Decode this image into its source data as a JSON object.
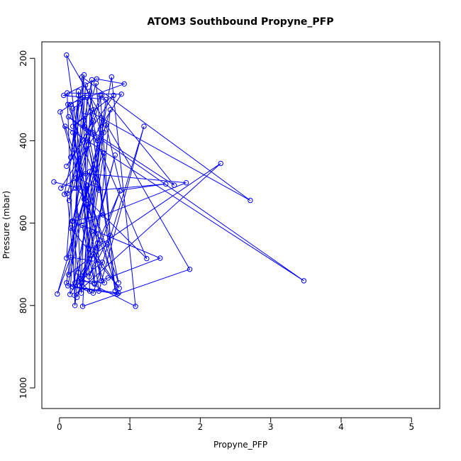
{
  "chart_data": {
    "type": "line",
    "title": "ATOM3 Southbound Propyne_PFP",
    "xlabel": "Propyne_PFP",
    "ylabel": "Pressure (mbar)",
    "xlim": [
      -0.25,
      5.4
    ],
    "ylim": [
      1050,
      160
    ],
    "y_axis_reversed": true,
    "x_ticks": [
      0,
      1,
      2,
      3,
      4,
      5
    ],
    "y_ticks": [
      200,
      400,
      600,
      800,
      1000
    ],
    "series": [
      {
        "color": "#0000ff",
        "marker": "open-circle",
        "x": [
          -0.08,
          0.27,
          0.07,
          0.34,
          0.29,
          0.19,
          0.31,
          0.66,
          0.06,
          0.53,
          0.92,
          0.12,
          0.56,
          0.24,
          0.48,
          0.43,
          0.01,
          0.35,
          0.63,
          0.46,
          0.68,
          0.13,
          0.39,
          0.82,
          0.19,
          0.51,
          0.27,
          0.22,
          0.11,
          0.58,
          0.72,
          0.42,
          0.86,
          0.29,
          0.18,
          0.63,
          0.36,
          0.79,
          0.25,
          0.52,
          2.29,
          0.21,
          0.74,
          1.08,
          0.31,
          0.46,
          0.14,
          0.6,
          1.63,
          0.35,
          0.52,
          0.79,
          0.47,
          1.24,
          0.23,
          0.41,
          0.56,
          1.51,
          0.88,
          0.66,
          0.1,
          0.27,
          0.16,
          0.35,
          0.15,
          0.54,
          0.19,
          0.39,
          0.84,
          0.12,
          0.58,
          0.37,
          0.24,
          0.1,
          0.48,
          1.2,
          0.56,
          0.1,
          1.85,
          0.33,
          0.43,
          0.59,
          0.28,
          1.8,
          0.16,
          0.85,
          0.47,
          0.64,
          0.27,
          0.61,
          0.16,
          -0.03,
          0.72,
          0.49,
          0.69,
          1.43,
          0.32,
          0.5,
          0.16,
          0.42,
          0.6,
          0.27,
          0.22,
          0.11,
          0.88,
          0.02,
          0.37,
          0.39,
          0.54,
          0.13,
          3.47,
          0.08,
          0.84,
          0.36,
          0.19,
          0.77,
          0.1,
          0.48,
          0.19,
          0.62,
          0.44,
          2.71,
          0.32,
          0.43,
          0.31
        ],
        "y": [
          500,
          515,
          530,
          295,
          310,
          322,
          770,
          300,
          290,
          250,
          262,
          312,
          515,
          490,
          325,
          280,
          330,
          542,
          430,
          620,
          652,
          725,
          510,
          772,
          755,
          500,
          280,
          745,
          528,
          290,
          630,
          730,
          522,
          752,
          595,
          380,
          725,
          435,
          780,
          660,
          455,
          775,
          245,
          802,
          735,
          252,
          545,
          290,
          508,
          365,
          260,
          765,
          380,
          686,
          515,
          410,
          520,
          505,
          520,
          362,
          685,
          290,
          440,
          240,
          773,
          648,
          380,
          555,
          770,
          752,
          372,
          265,
          580,
          745,
          770,
          365,
          765,
          192,
          712,
          802,
          475,
          740,
          478,
          502,
          612,
          758,
          665,
          745,
          740,
          695,
          683,
          772,
          325,
          745,
          733,
          685,
          605,
          748,
          312,
          662,
          345,
          720,
          800,
          284,
          287,
          515,
          480,
          295,
          400,
          342,
          740,
          365,
          745,
          340,
          365,
          290,
          462,
          352,
          595,
          580,
          330,
          545,
          245,
          765,
          745
        ]
      }
    ]
  }
}
